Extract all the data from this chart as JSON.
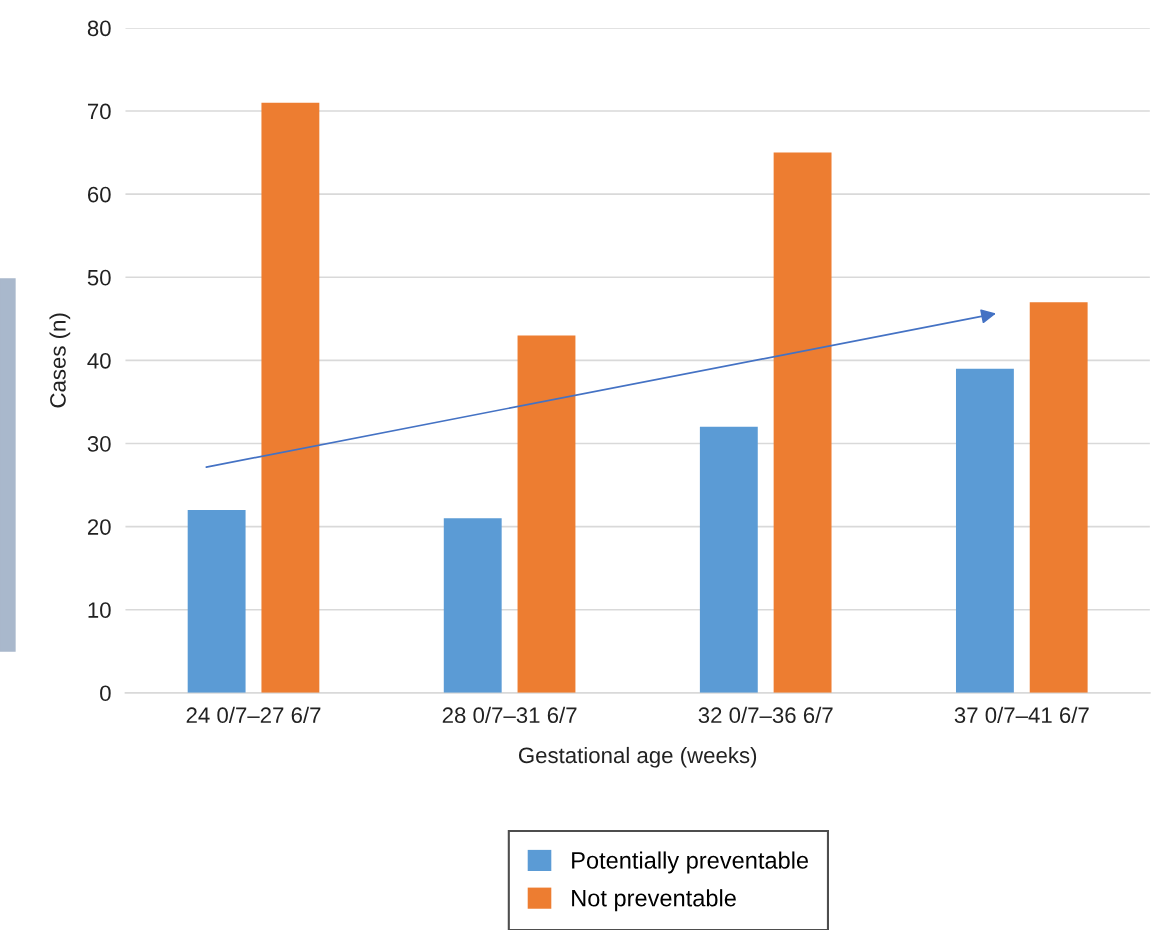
{
  "chart_data": {
    "type": "bar",
    "xlabel": "Gestational age (weeks)",
    "ylabel": "Cases (n)",
    "categories": [
      "24 0/7–27 6/7",
      "28 0/7–31 6/7",
      "32 0/7–36 6/7",
      "37 0/7–41 6/7"
    ],
    "series": [
      {
        "name": "Potentially preventable",
        "color": "#5b9bd5",
        "values": [
          22,
          21,
          32,
          39
        ]
      },
      {
        "name": "Not preventable",
        "color": "#ed7d31",
        "values": [
          71,
          43,
          65,
          47
        ]
      }
    ],
    "ylim": [
      0,
      80
    ],
    "yticks": [
      0,
      10,
      20,
      30,
      40,
      50,
      60,
      70,
      80
    ],
    "grid": "y",
    "legend": "bottom"
  }
}
